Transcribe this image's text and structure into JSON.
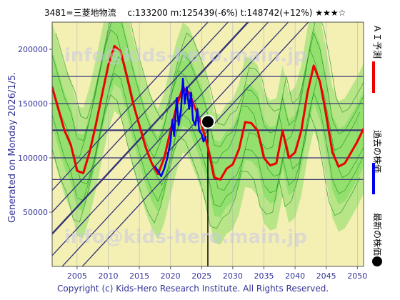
{
  "header": {
    "title": "3481=三菱地物流　 c:133200  m:125439(-6%)  t:148742(+12%)  ★★★☆"
  },
  "side_left": {
    "generated": "Generated on Monday 2026/1/5."
  },
  "legend": {
    "ai_forecast": "ＡＩ予測",
    "past_price": "過去の株価",
    "latest_price": "最新の株価"
  },
  "footer": {
    "copyright": "Copyright (c) Kids-Hero Research Institute. All Rights Reserved."
  },
  "watermark": {
    "text": "info@kids-hero.main.jp"
  },
  "colors": {
    "forecast": "#ee0000",
    "past": "#0000ee",
    "latest": "#000000",
    "band_green": "#88dd66",
    "band_yellow": "#f4f0b4",
    "grid_line": "#333377",
    "thin_green": "#229922",
    "axis_text": "#333399"
  },
  "chart_data": {
    "type": "line",
    "title": "3481=三菱地物流",
    "xlim": [
      2001,
      2051
    ],
    "ylim": [
      0,
      225000
    ],
    "x_ticks": [
      2005,
      2010,
      2015,
      2020,
      2025,
      2030,
      2035,
      2040,
      2045,
      2050
    ],
    "y_ticks": [
      50000,
      100000,
      150000,
      200000
    ],
    "horizontal_levels": [
      80000,
      100000,
      125439,
      150000,
      175000
    ],
    "latest": {
      "x": 2026.0,
      "y": 133200
    },
    "series": [
      {
        "name": "ＡＩ予測",
        "x": [
          2001,
          2002,
          2003,
          2004,
          2005,
          2006,
          2007,
          2008,
          2009,
          2010,
          2011,
          2012,
          2013,
          2014,
          2015,
          2016,
          2017,
          2018,
          2019,
          2020,
          2021,
          2022,
          2023,
          2024,
          2025,
          2026,
          2027,
          2028,
          2029,
          2030,
          2031,
          2032,
          2033,
          2034,
          2035,
          2036,
          2037,
          2038,
          2039,
          2040,
          2041,
          2042,
          2043,
          2044,
          2045,
          2046,
          2047,
          2048,
          2049,
          2050,
          2051
        ],
        "values": [
          165000,
          145000,
          125000,
          112000,
          88000,
          86000,
          105000,
          130000,
          158000,
          185000,
          203000,
          198000,
          175000,
          150000,
          130000,
          110000,
          95000,
          85000,
          100000,
          125000,
          148000,
          165000,
          160000,
          145000,
          130000,
          110000,
          82000,
          80000,
          90000,
          94000,
          108000,
          133000,
          132000,
          125000,
          100000,
          93000,
          95000,
          125000,
          100000,
          105000,
          125000,
          160000,
          185000,
          170000,
          140000,
          105000,
          92000,
          95000,
          105000,
          115000,
          127000
        ]
      },
      {
        "name": "過去の株価",
        "x": [
          2017.5,
          2018,
          2018.5,
          2019,
          2019.5,
          2020,
          2020.3,
          2020.6,
          2021,
          2021.3,
          2021.7,
          2022,
          2022.3,
          2022.6,
          2023,
          2023.3,
          2023.6,
          2024,
          2024.3,
          2024.6,
          2025,
          2025.3,
          2025.7
        ],
        "values": [
          92000,
          88000,
          83000,
          90000,
          100000,
          115000,
          135000,
          120000,
          155000,
          130000,
          145000,
          173000,
          150000,
          165000,
          145000,
          160000,
          135000,
          130000,
          145000,
          125000,
          122000,
          115000,
          120000
        ]
      }
    ]
  }
}
